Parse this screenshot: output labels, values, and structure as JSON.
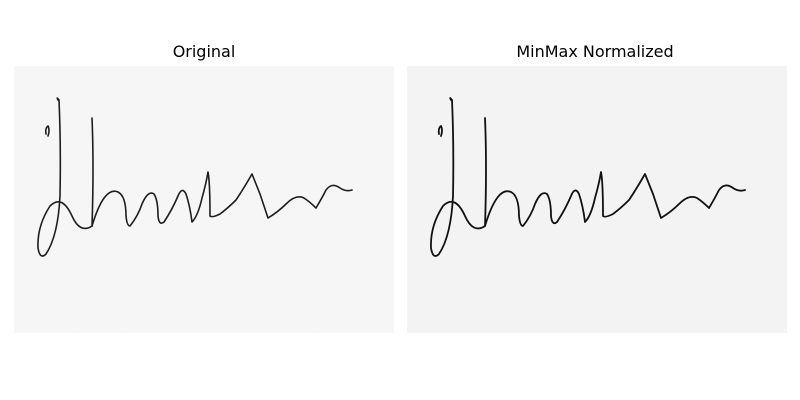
{
  "figure": {
    "panels": [
      {
        "title": "Original",
        "image_description": "handwritten signature in black ink on light gray-white paper"
      },
      {
        "title": "MinMax Normalized",
        "image_description": "same handwritten signature after min-max normalization, slightly darker strokes"
      }
    ]
  }
}
